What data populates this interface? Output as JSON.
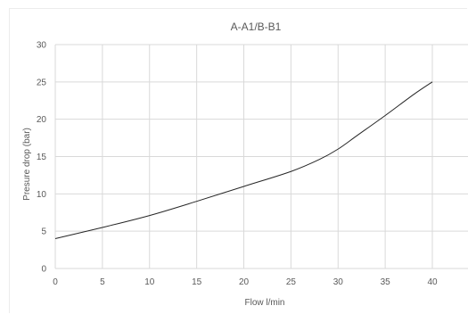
{
  "chart_data": {
    "type": "line",
    "title": "A-A1/B-B1",
    "xlabel": "Flow l/min",
    "ylabel": "Presure drop (bar)",
    "xlim": [
      0,
      40
    ],
    "ylim": [
      0,
      30
    ],
    "xticks": [
      0,
      5,
      10,
      15,
      20,
      25,
      30,
      35,
      40
    ],
    "yticks": [
      0,
      5,
      10,
      15,
      20,
      25,
      30
    ],
    "grid": true,
    "legend": "none",
    "series": [
      {
        "color": "#262626",
        "x": [
          0,
          5,
          10,
          15,
          20,
          25,
          28,
          30,
          32,
          35,
          38,
          40
        ],
        "y": [
          4,
          5.5,
          7.1,
          9,
          11,
          13,
          14.6,
          16,
          17.8,
          20.5,
          23.3,
          25
        ]
      }
    ]
  }
}
